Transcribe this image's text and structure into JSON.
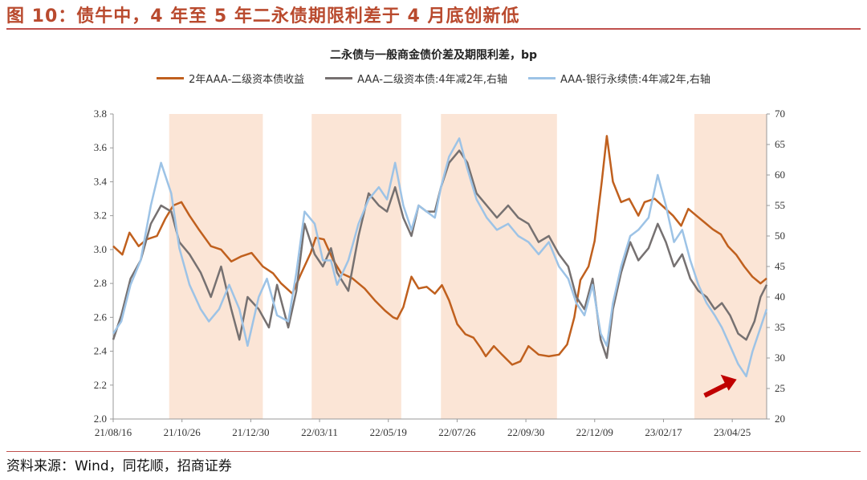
{
  "figure_title": "图 10：债牛中，4 年至 5 年二永债期限利差于 4 月底创新低",
  "source": "资料来源：Wind，同花顺，招商证券",
  "chart_data": {
    "type": "line",
    "title": "二永债与一般商金债价差及期限利差，bp",
    "x_tick_labels": [
      "21/08/16",
      "21/10/26",
      "21/12/30",
      "22/03/11",
      "22/05/19",
      "22/07/26",
      "22/09/30",
      "22/12/09",
      "23/02/17",
      "23/04/25"
    ],
    "x_range": [
      "2021-08-16",
      "2023-05-20"
    ],
    "y_left": {
      "range": [
        2.0,
        3.8
      ],
      "ticks": [
        "2.0",
        "2.2",
        "2.4",
        "2.6",
        "2.8",
        "3.0",
        "3.2",
        "3.4",
        "3.6",
        "3.8"
      ]
    },
    "y_right": {
      "range": [
        20,
        70
      ],
      "ticks": [
        "20",
        "25",
        "30",
        "35",
        "40",
        "45",
        "50",
        "55",
        "60",
        "65",
        "70"
      ]
    },
    "shaded_periods": [
      [
        "2021-10-10",
        "2022-01-10"
      ],
      [
        "2022-02-27",
        "2022-05-26"
      ],
      [
        "2022-07-04",
        "2022-10-26"
      ],
      [
        "2023-03-10",
        "2023-05-20"
      ]
    ],
    "series": [
      {
        "name": "2年AAA-二级资本债收益",
        "axis": "left",
        "color": "#c0601e",
        "points": [
          [
            "2021-08-16",
            3.02
          ],
          [
            "2021-08-25",
            2.97
          ],
          [
            "2021-09-01",
            3.1
          ],
          [
            "2021-09-10",
            3.02
          ],
          [
            "2021-09-18",
            3.06
          ],
          [
            "2021-09-28",
            3.08
          ],
          [
            "2021-10-06",
            3.18
          ],
          [
            "2021-10-14",
            3.26
          ],
          [
            "2021-10-22",
            3.28
          ],
          [
            "2021-10-30",
            3.2
          ],
          [
            "2021-11-08",
            3.12
          ],
          [
            "2021-11-20",
            3.02
          ],
          [
            "2021-11-30",
            3.0
          ],
          [
            "2021-12-10",
            2.93
          ],
          [
            "2021-12-20",
            2.96
          ],
          [
            "2021-12-30",
            2.98
          ],
          [
            "2022-01-10",
            2.9
          ],
          [
            "2022-01-20",
            2.86
          ],
          [
            "2022-01-28",
            2.8
          ],
          [
            "2022-02-08",
            2.74
          ],
          [
            "2022-02-16",
            2.85
          ],
          [
            "2022-02-26",
            2.98
          ],
          [
            "2022-03-03",
            3.07
          ],
          [
            "2022-03-11",
            3.06
          ],
          [
            "2022-03-20",
            2.94
          ],
          [
            "2022-03-28",
            2.86
          ],
          [
            "2022-04-08",
            2.83
          ],
          [
            "2022-04-20",
            2.77
          ],
          [
            "2022-04-30",
            2.7
          ],
          [
            "2022-05-10",
            2.64
          ],
          [
            "2022-05-18",
            2.6
          ],
          [
            "2022-05-22",
            2.59
          ],
          [
            "2022-05-28",
            2.66
          ],
          [
            "2022-06-05",
            2.84
          ],
          [
            "2022-06-12",
            2.77
          ],
          [
            "2022-06-20",
            2.78
          ],
          [
            "2022-06-28",
            2.74
          ],
          [
            "2022-07-05",
            2.79
          ],
          [
            "2022-07-12",
            2.7
          ],
          [
            "2022-07-20",
            2.56
          ],
          [
            "2022-07-28",
            2.5
          ],
          [
            "2022-08-05",
            2.48
          ],
          [
            "2022-08-12",
            2.42
          ],
          [
            "2022-08-17",
            2.37
          ],
          [
            "2022-08-25",
            2.43
          ],
          [
            "2022-09-02",
            2.38
          ],
          [
            "2022-09-12",
            2.32
          ],
          [
            "2022-09-20",
            2.34
          ],
          [
            "2022-09-28",
            2.43
          ],
          [
            "2022-10-08",
            2.38
          ],
          [
            "2022-10-18",
            2.37
          ],
          [
            "2022-10-28",
            2.38
          ],
          [
            "2022-11-05",
            2.44
          ],
          [
            "2022-11-12",
            2.6
          ],
          [
            "2022-11-18",
            2.82
          ],
          [
            "2022-11-26",
            2.9
          ],
          [
            "2022-12-02",
            3.05
          ],
          [
            "2022-12-09",
            3.4
          ],
          [
            "2022-12-14",
            3.67
          ],
          [
            "2022-12-20",
            3.4
          ],
          [
            "2022-12-28",
            3.28
          ],
          [
            "2023-01-05",
            3.3
          ],
          [
            "2023-01-14",
            3.2
          ],
          [
            "2023-01-20",
            3.28
          ],
          [
            "2023-01-30",
            3.3
          ],
          [
            "2023-02-08",
            3.25
          ],
          [
            "2023-02-17",
            3.2
          ],
          [
            "2023-02-25",
            3.14
          ],
          [
            "2023-03-04",
            3.24
          ],
          [
            "2023-03-12",
            3.2
          ],
          [
            "2023-03-20",
            3.16
          ],
          [
            "2023-03-28",
            3.12
          ],
          [
            "2023-04-05",
            3.09
          ],
          [
            "2023-04-12",
            3.02
          ],
          [
            "2023-04-20",
            2.97
          ],
          [
            "2023-04-28",
            2.9
          ],
          [
            "2023-05-06",
            2.84
          ],
          [
            "2023-05-14",
            2.8
          ],
          [
            "2023-05-20",
            2.83
          ]
        ]
      },
      {
        "name": "AAA-二级资本债:4年减2年,右轴",
        "axis": "right",
        "color": "#767171",
        "points": [
          [
            "2021-08-16",
            33
          ],
          [
            "2021-08-24",
            37
          ],
          [
            "2021-09-02",
            43
          ],
          [
            "2021-09-12",
            46
          ],
          [
            "2021-09-22",
            52
          ],
          [
            "2021-10-02",
            55
          ],
          [
            "2021-10-12",
            54
          ],
          [
            "2021-10-20",
            49
          ],
          [
            "2021-10-30",
            47
          ],
          [
            "2021-11-10",
            44
          ],
          [
            "2021-11-20",
            40
          ],
          [
            "2021-11-30",
            45
          ],
          [
            "2021-12-10",
            38
          ],
          [
            "2021-12-18",
            33
          ],
          [
            "2021-12-26",
            40
          ],
          [
            "2022-01-06",
            38
          ],
          [
            "2022-01-16",
            35
          ],
          [
            "2022-01-24",
            42
          ],
          [
            "2022-02-04",
            35
          ],
          [
            "2022-02-12",
            41
          ],
          [
            "2022-02-20",
            52
          ],
          [
            "2022-03-02",
            47
          ],
          [
            "2022-03-10",
            45
          ],
          [
            "2022-03-18",
            48
          ],
          [
            "2022-03-24",
            44
          ],
          [
            "2022-04-04",
            41
          ],
          [
            "2022-04-14",
            50
          ],
          [
            "2022-04-24",
            57
          ],
          [
            "2022-05-04",
            55
          ],
          [
            "2022-05-12",
            54
          ],
          [
            "2022-05-20",
            58
          ],
          [
            "2022-05-28",
            53
          ],
          [
            "2022-06-05",
            50
          ],
          [
            "2022-06-12",
            55
          ],
          [
            "2022-06-20",
            54
          ],
          [
            "2022-06-28",
            54
          ],
          [
            "2022-07-04",
            58
          ],
          [
            "2022-07-12",
            62
          ],
          [
            "2022-07-22",
            64
          ],
          [
            "2022-07-30",
            62
          ],
          [
            "2022-08-08",
            57
          ],
          [
            "2022-08-18",
            55
          ],
          [
            "2022-08-28",
            53
          ],
          [
            "2022-09-08",
            55
          ],
          [
            "2022-09-18",
            53
          ],
          [
            "2022-09-28",
            52
          ],
          [
            "2022-10-08",
            49
          ],
          [
            "2022-10-18",
            50
          ],
          [
            "2022-10-28",
            47
          ],
          [
            "2022-11-06",
            45
          ],
          [
            "2022-11-14",
            40
          ],
          [
            "2022-11-22",
            38
          ],
          [
            "2022-11-30",
            43
          ],
          [
            "2022-12-08",
            33
          ],
          [
            "2022-12-14",
            30
          ],
          [
            "2022-12-20",
            38
          ],
          [
            "2022-12-28",
            44
          ],
          [
            "2023-01-06",
            49
          ],
          [
            "2023-01-14",
            46
          ],
          [
            "2023-01-24",
            48
          ],
          [
            "2023-02-02",
            52
          ],
          [
            "2023-02-10",
            49
          ],
          [
            "2023-02-18",
            45
          ],
          [
            "2023-02-26",
            47
          ],
          [
            "2023-03-06",
            43
          ],
          [
            "2023-03-14",
            41
          ],
          [
            "2023-03-22",
            40
          ],
          [
            "2023-03-30",
            38
          ],
          [
            "2023-04-06",
            39
          ],
          [
            "2023-04-14",
            37
          ],
          [
            "2023-04-22",
            34
          ],
          [
            "2023-04-30",
            33
          ],
          [
            "2023-05-08",
            36
          ],
          [
            "2023-05-14",
            40
          ],
          [
            "2023-05-20",
            42
          ]
        ]
      },
      {
        "name": "AAA-银行永续债:4年减2年,右轴",
        "axis": "right",
        "color": "#9dc3e6",
        "points": [
          [
            "2021-08-16",
            34
          ],
          [
            "2021-08-24",
            36
          ],
          [
            "2021-09-02",
            42
          ],
          [
            "2021-09-12",
            46
          ],
          [
            "2021-09-22",
            55
          ],
          [
            "2021-10-02",
            62
          ],
          [
            "2021-10-12",
            57
          ],
          [
            "2021-10-20",
            48
          ],
          [
            "2021-10-30",
            42
          ],
          [
            "2021-11-10",
            38
          ],
          [
            "2021-11-18",
            36
          ],
          [
            "2021-11-28",
            38
          ],
          [
            "2021-12-08",
            42
          ],
          [
            "2021-12-18",
            38
          ],
          [
            "2021-12-26",
            32
          ],
          [
            "2022-01-06",
            40
          ],
          [
            "2022-01-14",
            43
          ],
          [
            "2022-01-24",
            37
          ],
          [
            "2022-02-04",
            36
          ],
          [
            "2022-02-12",
            44
          ],
          [
            "2022-02-20",
            54
          ],
          [
            "2022-03-02",
            52
          ],
          [
            "2022-03-10",
            46
          ],
          [
            "2022-03-18",
            46
          ],
          [
            "2022-03-24",
            42
          ],
          [
            "2022-04-04",
            46
          ],
          [
            "2022-04-14",
            52
          ],
          [
            "2022-04-24",
            56
          ],
          [
            "2022-05-04",
            58
          ],
          [
            "2022-05-12",
            56
          ],
          [
            "2022-05-20",
            62
          ],
          [
            "2022-05-28",
            55
          ],
          [
            "2022-06-05",
            51
          ],
          [
            "2022-06-12",
            55
          ],
          [
            "2022-06-20",
            54
          ],
          [
            "2022-06-28",
            53
          ],
          [
            "2022-07-04",
            58
          ],
          [
            "2022-07-12",
            63
          ],
          [
            "2022-07-22",
            66
          ],
          [
            "2022-07-30",
            61
          ],
          [
            "2022-08-08",
            56
          ],
          [
            "2022-08-18",
            53
          ],
          [
            "2022-08-28",
            51
          ],
          [
            "2022-09-08",
            52
          ],
          [
            "2022-09-18",
            50
          ],
          [
            "2022-09-28",
            49
          ],
          [
            "2022-10-08",
            47
          ],
          [
            "2022-10-18",
            49
          ],
          [
            "2022-10-28",
            45
          ],
          [
            "2022-11-06",
            43
          ],
          [
            "2022-11-14",
            39
          ],
          [
            "2022-11-22",
            37
          ],
          [
            "2022-11-30",
            42
          ],
          [
            "2022-12-08",
            34
          ],
          [
            "2022-12-14",
            32
          ],
          [
            "2022-12-20",
            39
          ],
          [
            "2022-12-28",
            45
          ],
          [
            "2023-01-06",
            50
          ],
          [
            "2023-01-14",
            51
          ],
          [
            "2023-01-24",
            53
          ],
          [
            "2023-02-02",
            60
          ],
          [
            "2023-02-10",
            55
          ],
          [
            "2023-02-18",
            49
          ],
          [
            "2023-02-26",
            51
          ],
          [
            "2023-03-06",
            46
          ],
          [
            "2023-03-14",
            42
          ],
          [
            "2023-03-22",
            39
          ],
          [
            "2023-03-30",
            37
          ],
          [
            "2023-04-06",
            35
          ],
          [
            "2023-04-14",
            32
          ],
          [
            "2023-04-22",
            29
          ],
          [
            "2023-04-30",
            27
          ],
          [
            "2023-05-06",
            31
          ],
          [
            "2023-05-14",
            35
          ],
          [
            "2023-05-20",
            38
          ]
        ]
      }
    ],
    "annotation": {
      "type": "arrow",
      "color": "#c00000",
      "points_to": [
        "2023-04-30",
        27
      ]
    },
    "grid": false,
    "legend_position": "top-center"
  }
}
